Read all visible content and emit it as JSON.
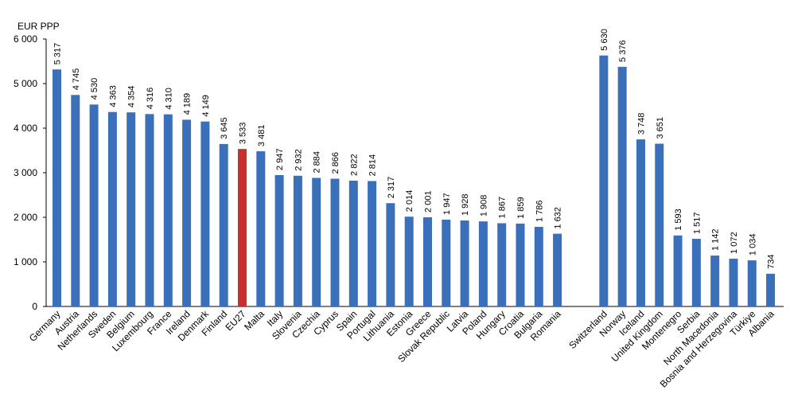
{
  "chart_data": {
    "type": "bar",
    "title": "",
    "xlabel": "",
    "ylabel": "EUR PPP",
    "ylim": [
      0,
      6000
    ],
    "yticks": [
      0,
      1000,
      2000,
      3000,
      4000,
      5000,
      6000
    ],
    "ytick_labels": [
      "0",
      "1 000",
      "2 000",
      "3 000",
      "4 000",
      "5 000",
      "6 000"
    ],
    "grid": false,
    "colors": {
      "default": "#3a6fba",
      "highlight": "#c8312b"
    },
    "groups": [
      {
        "name": "eu",
        "categories": [
          "Germany",
          "Austria",
          "Netherlands",
          "Sweden",
          "Belgium",
          "Luxembourg",
          "France",
          "Ireland",
          "Denmark",
          "Finland",
          "EU27",
          "Malta",
          "Italy",
          "Slovenia",
          "Czechia",
          "Cyprus",
          "Spain",
          "Portugal",
          "Lithuania",
          "Estonia",
          "Greece",
          "Slovak Republic",
          "Latvia",
          "Poland",
          "Hungary",
          "Croatia",
          "Bulgaria",
          "Romania"
        ],
        "values": [
          5317,
          4745,
          4530,
          4363,
          4354,
          4316,
          4310,
          4189,
          4149,
          3645,
          3533,
          3481,
          2947,
          2932,
          2884,
          2866,
          2822,
          2814,
          2317,
          2014,
          2001,
          1947,
          1928,
          1908,
          1867,
          1859,
          1786,
          1632
        ],
        "value_labels": [
          "5 317",
          "4 745",
          "4 530",
          "4 363",
          "4 354",
          "4 316",
          "4 310",
          "4 189",
          "4 149",
          "3 645",
          "3 533",
          "3 481",
          "2 947",
          "2 932",
          "2 884",
          "2 866",
          "2 822",
          "2 814",
          "2 317",
          "2 014",
          "2 001",
          "1 947",
          "1 928",
          "1 908",
          "1 867",
          "1 859",
          "1 786",
          "1 632"
        ],
        "highlight": [
          "EU27"
        ]
      },
      {
        "name": "non-eu",
        "categories": [
          "Switzerland",
          "Norway",
          "Iceland",
          "United Kingdom",
          "Montenegro",
          "Serbia",
          "North Macedonia",
          "Bosnia and Herzegovina",
          "Türkiye",
          "Albania"
        ],
        "values": [
          5630,
          5376,
          3748,
          3651,
          1593,
          1517,
          1142,
          1072,
          1034,
          734
        ],
        "value_labels": [
          "5 630",
          "5 376",
          "3 748",
          "3 651",
          "1 593",
          "1 517",
          "1 142",
          "1 072",
          "1 034",
          "734"
        ],
        "highlight": []
      }
    ]
  }
}
